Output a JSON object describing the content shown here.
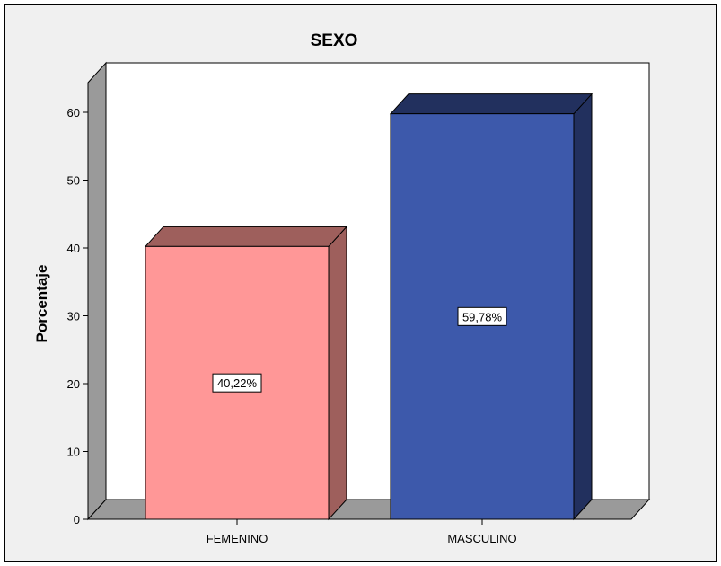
{
  "chart_data": {
    "type": "bar",
    "title": "SEXO",
    "xlabel": "",
    "ylabel": "Porcentaje",
    "categories": [
      "FEMENINO",
      "MASCULINO"
    ],
    "values": [
      40.22,
      59.78
    ],
    "data_labels": [
      "40,22%",
      "59,78%"
    ],
    "ylim": [
      0,
      65
    ],
    "yticks": [
      0,
      10,
      20,
      30,
      40,
      50,
      60
    ],
    "grid": false,
    "style": "3d",
    "colors": {
      "background": "#f0f0f0",
      "plot_area": "#ffffff",
      "wall_side": "#9a9a9a",
      "bars": [
        {
          "front": "#ff9797",
          "top": "#9e5f5c",
          "side": "#9e5f5c"
        },
        {
          "front": "#3d59ab",
          "top": "#22305e",
          "side": "#22305e"
        }
      ]
    }
  }
}
